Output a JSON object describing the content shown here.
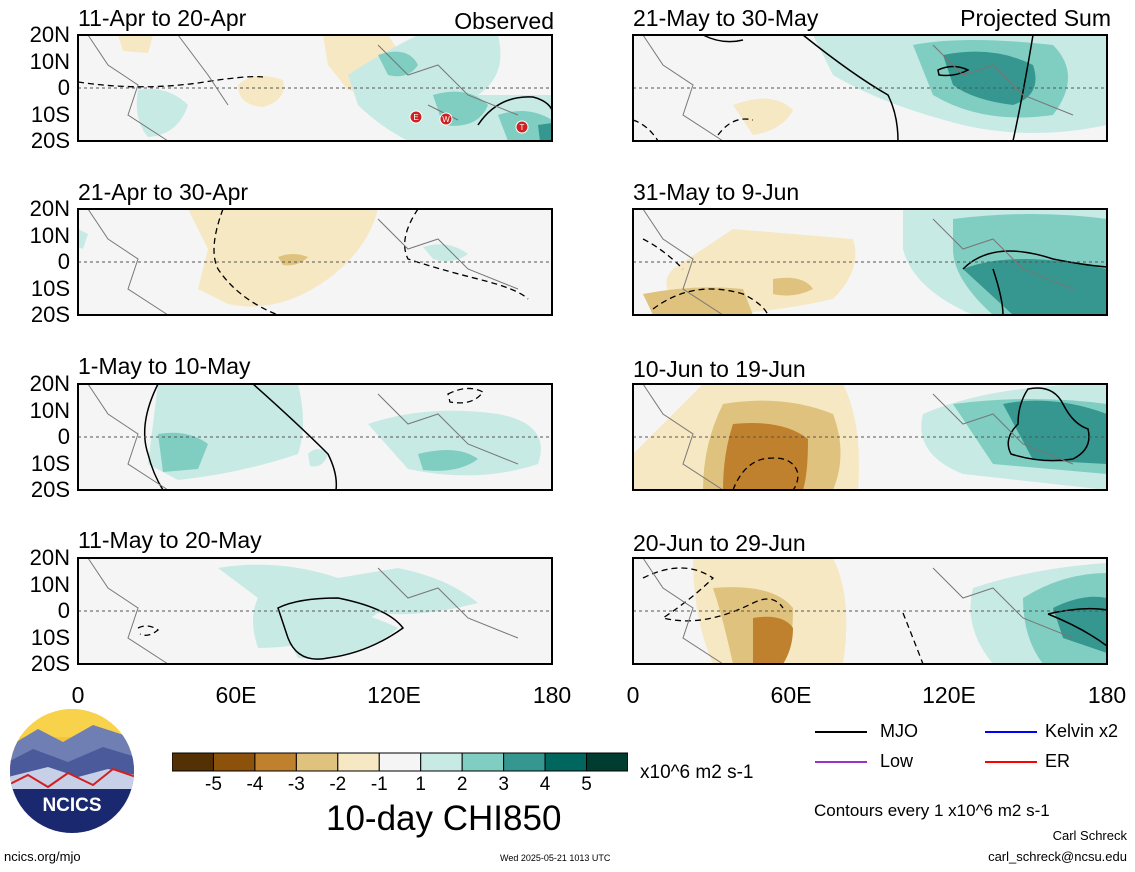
{
  "chart_data": {
    "type": "heatmap",
    "title": "10-day CHI850",
    "colorbar": {
      "unit": "x10^6 m2 s-1",
      "ticks": [
        "-5",
        "-4",
        "-3",
        "-2",
        "-1",
        "1",
        "2",
        "3",
        "4",
        "5"
      ],
      "colors": [
        "#543005",
        "#8c510a",
        "#bf812d",
        "#dfc27d",
        "#f6e8c3",
        "#f5f5f5",
        "#c7eae5",
        "#80cdc1",
        "#35978f",
        "#01665e",
        "#003c30"
      ]
    },
    "lat_ticks": [
      "20N",
      "10N",
      "0",
      "10S",
      "20S"
    ],
    "lon_ticks": [
      "0",
      "60E",
      "120E",
      "180"
    ],
    "left_tag": "Observed",
    "right_tag": "Projected Sum",
    "panels": [
      {
        "id": "p1",
        "title": "11-Apr to 20-Apr",
        "col": "left"
      },
      {
        "id": "p2",
        "title": "21-Apr to 30-Apr",
        "col": "left"
      },
      {
        "id": "p3",
        "title": "1-May to 10-May",
        "col": "left"
      },
      {
        "id": "p4",
        "title": "11-May to 20-May",
        "col": "left"
      },
      {
        "id": "p5",
        "title": "21-May to 30-May",
        "col": "right"
      },
      {
        "id": "p6",
        "title": "31-May to 9-Jun",
        "col": "right"
      },
      {
        "id": "p7",
        "title": "10-Jun to 19-Jun",
        "col": "right"
      },
      {
        "id": "p8",
        "title": "20-Jun to 29-Jun",
        "col": "right"
      }
    ],
    "markers": [
      "E",
      "W",
      "T"
    ],
    "line_legend": [
      {
        "label": "MJO",
        "color": "#000000"
      },
      {
        "label": "Kelvin x2",
        "color": "#0000ff"
      },
      {
        "label": "Low",
        "color": "#9933cc"
      },
      {
        "label": "ER",
        "color": "#ff0000"
      }
    ],
    "contour_note": "Contours every 1 x10^6 m2 s-1"
  },
  "footer": {
    "logo_text": "NCICS",
    "url": "ncics.org/mjo",
    "timestamp": "Wed 2025-05-21 1013 UTC",
    "author": "Carl Schreck",
    "email": "carl_schreck@ncsu.edu"
  }
}
